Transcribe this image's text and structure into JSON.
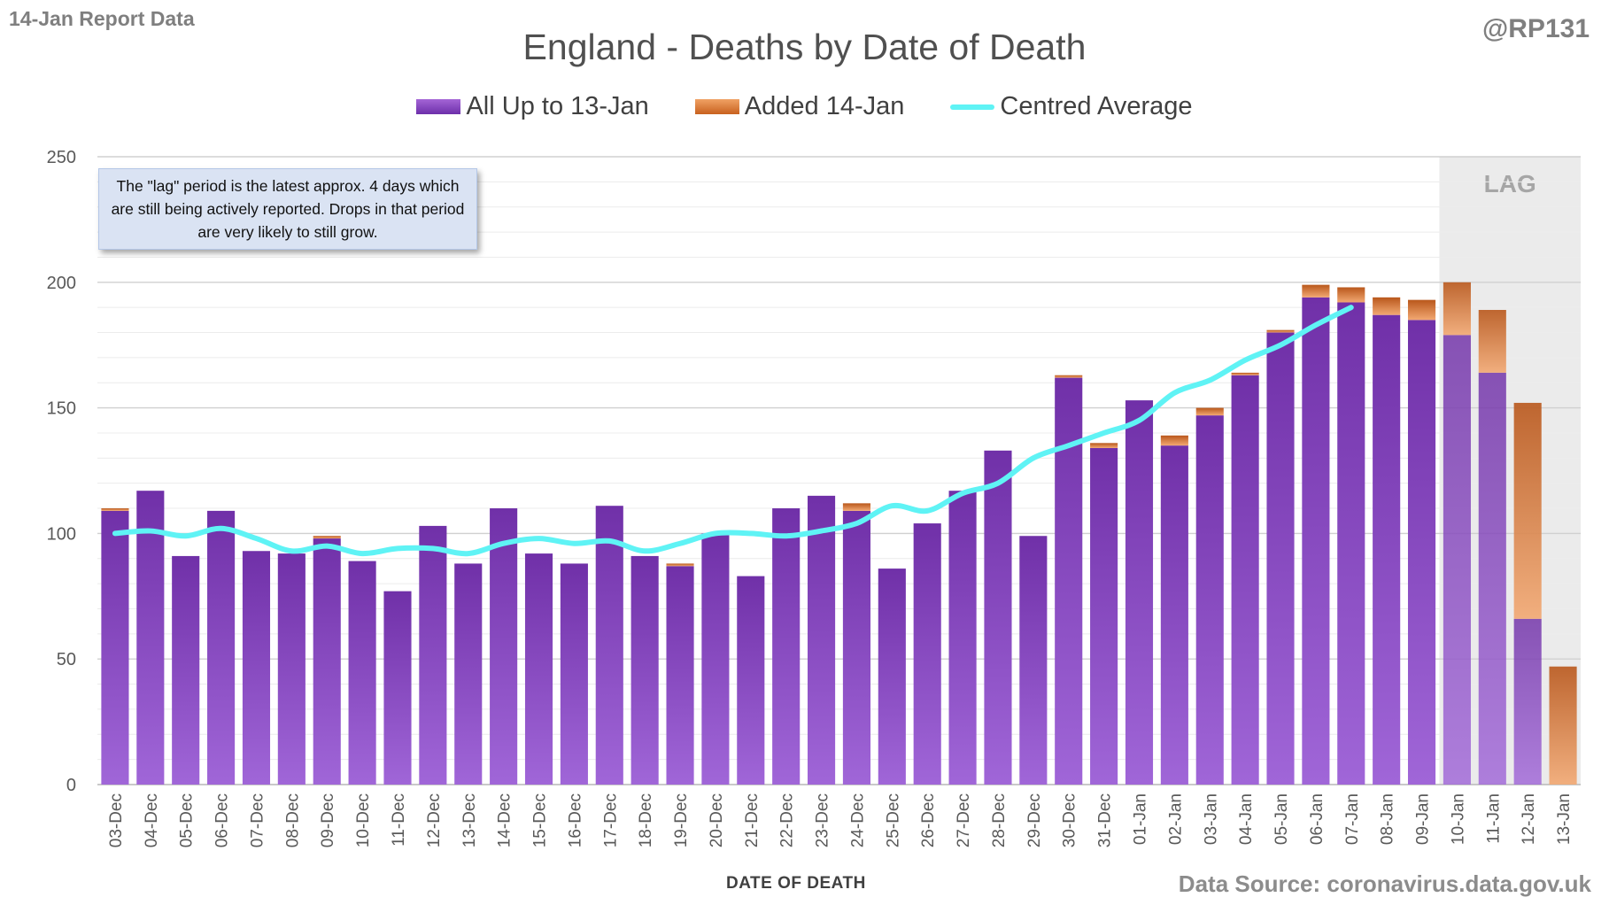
{
  "report_label": "14-Jan Report Data",
  "author": "@RP131",
  "lag_note": "The \"lag\" period is the latest approx. 4 days which are still being actively reported.  Drops in that period are very likely to still grow.",
  "source_note": "Data Source: coronavirus.data.gov.uk",
  "colors": {
    "all": "#7b35bd",
    "added": "#d9732e",
    "average": "#5ff3f5",
    "lag_shade": "#ebebeb"
  },
  "chart_data": {
    "type": "bar",
    "stacked": true,
    "title": "England - Deaths by Date of Death",
    "xlabel": "DATE OF DEATH",
    "ylabel": "",
    "ylim": [
      0,
      250
    ],
    "yticks": [
      0,
      50,
      100,
      150,
      200,
      250
    ],
    "grid": true,
    "legend_position": "top",
    "lag_label": "LAG",
    "lag_categories": [
      "10-Jan",
      "11-Jan",
      "12-Jan",
      "13-Jan"
    ],
    "categories": [
      "03-Dec",
      "04-Dec",
      "05-Dec",
      "06-Dec",
      "07-Dec",
      "08-Dec",
      "09-Dec",
      "10-Dec",
      "11-Dec",
      "12-Dec",
      "13-Dec",
      "14-Dec",
      "15-Dec",
      "16-Dec",
      "17-Dec",
      "18-Dec",
      "19-Dec",
      "20-Dec",
      "21-Dec",
      "22-Dec",
      "23-Dec",
      "24-Dec",
      "25-Dec",
      "26-Dec",
      "27-Dec",
      "28-Dec",
      "29-Dec",
      "30-Dec",
      "31-Dec",
      "01-Jan",
      "02-Jan",
      "03-Jan",
      "04-Jan",
      "05-Jan",
      "06-Jan",
      "07-Jan",
      "08-Jan",
      "09-Jan",
      "10-Jan",
      "11-Jan",
      "12-Jan",
      "13-Jan"
    ],
    "series": [
      {
        "name": "All Up to 13-Jan",
        "kind": "bar",
        "values": [
          109,
          117,
          91,
          109,
          93,
          92,
          98,
          89,
          77,
          103,
          88,
          110,
          92,
          88,
          111,
          91,
          87,
          100,
          83,
          110,
          115,
          109,
          86,
          104,
          117,
          133,
          99,
          162,
          134,
          153,
          135,
          147,
          163,
          180,
          194,
          192,
          187,
          185,
          179,
          164,
          66,
          0
        ]
      },
      {
        "name": "Added 14-Jan",
        "kind": "bar",
        "values": [
          1,
          0,
          0,
          0,
          0,
          0,
          1,
          0,
          0,
          0,
          0,
          0,
          0,
          0,
          0,
          0,
          1,
          0,
          0,
          0,
          0,
          3,
          0,
          0,
          0,
          0,
          0,
          1,
          2,
          0,
          4,
          3,
          1,
          1,
          5,
          6,
          7,
          8,
          21,
          25,
          86,
          47
        ]
      },
      {
        "name": "Centred Average",
        "kind": "line",
        "values": [
          100,
          101,
          99,
          102,
          98,
          93,
          95,
          92,
          94,
          94,
          92,
          96,
          98,
          96,
          97,
          93,
          96,
          100,
          100,
          99,
          101,
          104,
          111,
          109,
          116,
          120,
          130,
          135,
          140,
          145,
          156,
          161,
          169,
          175,
          183,
          190,
          null,
          null,
          null,
          null,
          null,
          null
        ]
      }
    ]
  }
}
